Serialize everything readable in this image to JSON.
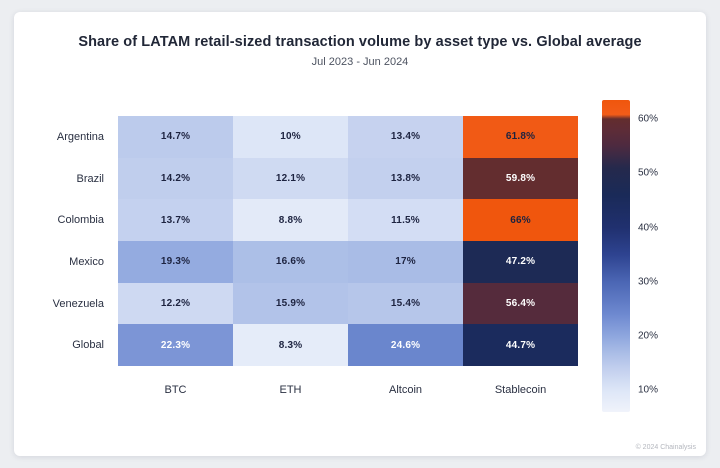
{
  "footer": {
    "credit": "© 2024 Chainalysis"
  },
  "chart_data": {
    "type": "heatmap",
    "title": "Share of LATAM retail-sized transaction volume by asset type vs. Global average",
    "subtitle": "Jul 2023 - Jun 2024",
    "rows": [
      "Argentina",
      "Brazil",
      "Colombia",
      "Mexico",
      "Venezuela",
      "Global"
    ],
    "columns": [
      "BTC",
      "ETH",
      "Altcoin",
      "Stablecoin"
    ],
    "values": [
      [
        14.7,
        10,
        13.4,
        61.8
      ],
      [
        14.2,
        12.1,
        13.8,
        59.8
      ],
      [
        13.7,
        8.8,
        11.5,
        66
      ],
      [
        19.3,
        16.6,
        17,
        47.2
      ],
      [
        12.2,
        15.9,
        15.4,
        56.4
      ],
      [
        22.3,
        8.3,
        24.6,
        44.7
      ]
    ],
    "cell_labels": [
      [
        "14.7%",
        "10%",
        "13.4%",
        "61.8%"
      ],
      [
        "14.2%",
        "12.1%",
        "13.8%",
        "59.8%"
      ],
      [
        "13.7%",
        "8.8%",
        "11.5%",
        "66%"
      ],
      [
        "19.3%",
        "16.6%",
        "17%",
        "47.2%"
      ],
      [
        "12.2%",
        "15.9%",
        "15.4%",
        "56.4%"
      ],
      [
        "22.3%",
        "8.3%",
        "24.6%",
        "44.7%"
      ]
    ],
    "colorbar": {
      "min": 6,
      "max": 63.5,
      "position": "right",
      "ticks": [
        {
          "value": 60,
          "label": "60%"
        },
        {
          "value": 50,
          "label": "50%"
        },
        {
          "value": 40,
          "label": "40%"
        },
        {
          "value": 30,
          "label": "30%"
        },
        {
          "value": 20,
          "label": "20%"
        },
        {
          "value": 10,
          "label": "10%"
        }
      ]
    },
    "colorscale": [
      {
        "v": 6,
        "color": "#f0f3fb"
      },
      {
        "v": 10,
        "color": "#dde6f7"
      },
      {
        "v": 14,
        "color": "#c2cfee"
      },
      {
        "v": 17,
        "color": "#a9bce6"
      },
      {
        "v": 20,
        "color": "#8ea6de"
      },
      {
        "v": 24,
        "color": "#6e89d0"
      },
      {
        "v": 30,
        "color": "#4b66b4"
      },
      {
        "v": 35,
        "color": "#2e4390"
      },
      {
        "v": 40,
        "color": "#20306f"
      },
      {
        "v": 46,
        "color": "#1a2a58"
      },
      {
        "v": 51,
        "color": "#25294c"
      },
      {
        "v": 55,
        "color": "#4d2a40"
      },
      {
        "v": 58,
        "color": "#5e2c37"
      },
      {
        "v": 60,
        "color": "#632d2e"
      },
      {
        "v": 60.8,
        "color": "#f25c19"
      },
      {
        "v": 63.5,
        "color": "#f0560d"
      }
    ],
    "text_colors": {
      "dark": "#1d2340",
      "light": "#ffffff",
      "white_min": 21,
      "dark_above": 60
    },
    "grid": false
  }
}
